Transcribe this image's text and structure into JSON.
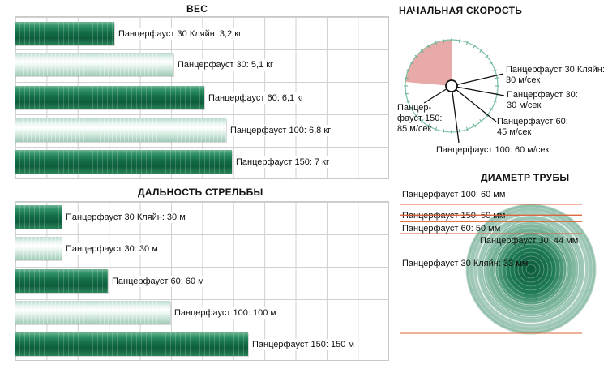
{
  "chart_data": [
    {
      "type": "bar",
      "title": "ВЕС",
      "unit": "кг",
      "categories": [
        "Панцерфауст 30 Кляйн",
        "Панцерфауст 30",
        "Панцерфауст 60",
        "Панцерфауст 100",
        "Панцерфауст 150"
      ],
      "values": [
        3.2,
        5.1,
        6.1,
        6.8,
        7
      ],
      "labels": [
        "Панцерфауст 30 Кляйн: 3,2 кг",
        "Панцерфауст 30: 5,1 кг",
        "Панцерфауст 60: 6,1 кг",
        "Панцерфауст 100: 6,8 кг",
        "Панцерфауст 150: 7 кг"
      ],
      "xlim": [
        0,
        12
      ]
    },
    {
      "type": "bar",
      "title": "ДАЛЬНОСТЬ СТРЕЛЬБЫ",
      "unit": "м",
      "categories": [
        "Панцерфауст 30 Кляйн",
        "Панцерфауст 30",
        "Панцерфауст 60",
        "Панцерфауст 100",
        "Панцерфауст 150"
      ],
      "values": [
        30,
        30,
        60,
        100,
        150
      ],
      "labels": [
        "Панцерфауст 30 Кляйн: 30 м",
        "Панцерфауст 30: 30 м",
        "Панцерфауст 60: 60 м",
        "Панцерфауст 100: 100 м",
        "Панцерфауст 150: 150 м"
      ],
      "xlim": [
        0,
        240
      ]
    },
    {
      "type": "pie",
      "title": "НАЧАЛЬНАЯ СКОРОСТЬ",
      "unit": "м/сек",
      "categories": [
        "Панцерфауст 30 Кляйн",
        "Панцерфауст 30",
        "Панцерфауст 60",
        "Панцерфауст 100",
        "Панцерфауст 150"
      ],
      "values": [
        30,
        30,
        45,
        60,
        85
      ],
      "label_lines": [
        [
          "Панцерфауст 30 Кляйн:",
          "30 м/сек"
        ],
        [
          "Панцерфауст 30:",
          "30 м/сек"
        ],
        [
          "Панцерфауст 60:",
          "45 м/сек"
        ],
        [
          "Панцерфауст 100: 60 м/сек"
        ],
        [
          "Панцер-",
          "фауст 150:",
          "85 м/сек"
        ]
      ],
      "max_value": 360
    },
    {
      "type": "bar",
      "title": "ДИАМЕТР ТРУБЫ",
      "unit": "мм",
      "categories": [
        "Панцерфауст 100",
        "Панцерфауст 150",
        "Панцерфауст 60",
        "Панцерфауст 30",
        "Панцерфауст 30 Кляйн"
      ],
      "values": [
        60,
        50,
        50,
        44,
        33
      ],
      "labels": [
        "Панцерфауст 100: 60 мм",
        "Панцерфауст 150: 50 мм",
        "Панцерфауст 60: 50 мм",
        "Панцерфауст 30: 44 мм",
        "Панцерфауст 30 Кляйн: 33 мм"
      ]
    }
  ],
  "colors": {
    "bar_dark": "#136e48",
    "bar_light": "#e9f5f0",
    "speed_sector": "#e8a9a9",
    "diameter_line": "#d9643a",
    "tick": "#5fae8c"
  }
}
